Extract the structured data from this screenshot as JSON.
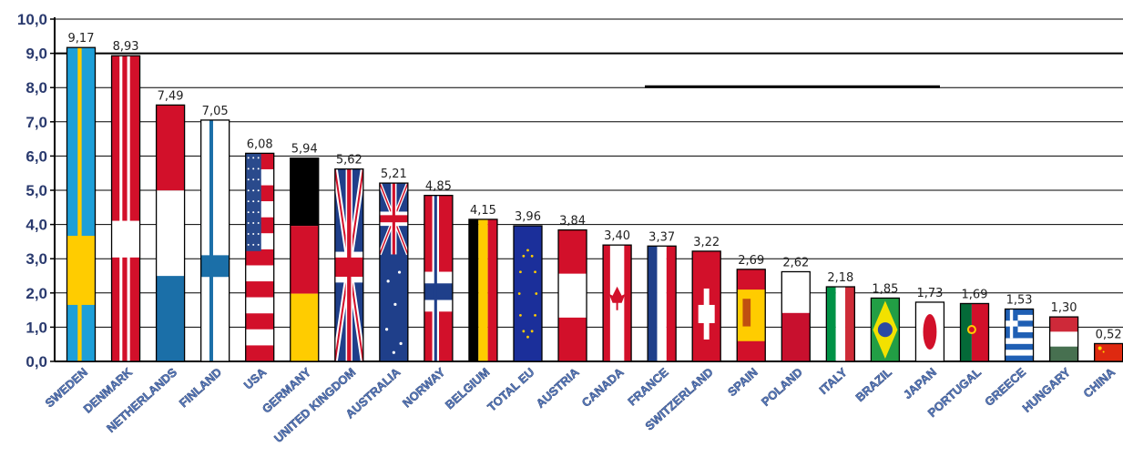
{
  "chart_data": {
    "type": "bar",
    "title": "",
    "xlabel": "",
    "ylabel": "",
    "ylim": [
      0,
      10
    ],
    "yticks": [
      "0,0",
      "1,0",
      "2,0",
      "3,0",
      "4,0",
      "5,0",
      "6,0",
      "7,0",
      "8,0",
      "9,0",
      "10,0"
    ],
    "categories": [
      "SWEDEN",
      "DENMARK",
      "NETHERLANDS",
      "FINLAND",
      "USA",
      "GERMANY",
      "UNITED KINGDOM",
      "AUSTRALIA",
      "NORWAY",
      "BELGIUM",
      "TOTAL EU",
      "AUSTRIA",
      "CANADA",
      "FRANCE",
      "SWITZERLAND",
      "SPAIN",
      "POLAND",
      "ITALY",
      "BRAZIL",
      "JAPAN",
      "PORTUGAL",
      "GREECE",
      "HUNGARY",
      "CHINA"
    ],
    "values": [
      9.17,
      8.93,
      7.49,
      7.05,
      6.08,
      5.94,
      5.62,
      5.21,
      4.85,
      4.15,
      3.96,
      3.84,
      3.4,
      3.37,
      3.22,
      2.69,
      2.62,
      2.18,
      1.85,
      1.73,
      1.69,
      1.53,
      1.3,
      0.52
    ],
    "value_labels": [
      "9,17",
      "8,93",
      "7,49",
      "7,05",
      "6,08",
      "5,94",
      "5,62",
      "5,21",
      "4,85",
      "4,15",
      "3,96",
      "3,84",
      "3,40",
      "3,37",
      "3,22",
      "2,69",
      "2,62",
      "2,18",
      "1,85",
      "1,73",
      "1,69",
      "1,53",
      "1,30",
      "0,52"
    ],
    "bar_fill": "flag of each country",
    "grid": true,
    "reference_lines": [
      {
        "value": 9.0,
        "span": "full"
      },
      {
        "value": 8.0,
        "span": "partial"
      }
    ],
    "colors": {
      "grid": "#000000",
      "ytick": "#2a3a6e",
      "xlabel": "#5b7fbf",
      "value_label": "#222222"
    }
  }
}
